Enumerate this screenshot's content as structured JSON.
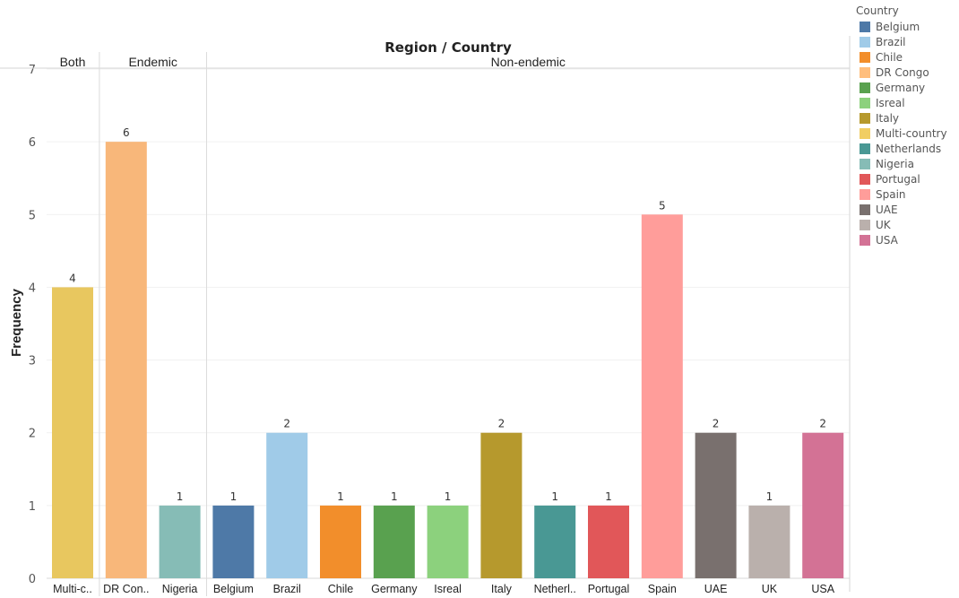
{
  "chart_data": {
    "type": "bar",
    "title": "Region / Country",
    "ylabel": "Frequency",
    "xlabel": "",
    "ylim": [
      0,
      7
    ],
    "yticks": [
      0,
      1,
      2,
      3,
      4,
      5,
      6,
      7
    ],
    "grid": true,
    "legend_position": "right",
    "regions": [
      {
        "name": "Both",
        "categories": [
          "Multi-country"
        ]
      },
      {
        "name": "Endemic",
        "categories": [
          "DR Congo",
          "Nigeria"
        ]
      },
      {
        "name": "Non-endemic",
        "categories": [
          "Belgium",
          "Brazil",
          "Chile",
          "Germany",
          "Isreal",
          "Italy",
          "Netherlands",
          "Portugal",
          "Spain",
          "UAE",
          "UK",
          "USA"
        ]
      }
    ],
    "categories": [
      "Multi-country",
      "DR Congo",
      "Nigeria",
      "Belgium",
      "Brazil",
      "Chile",
      "Germany",
      "Isreal",
      "Italy",
      "Netherlands",
      "Portugal",
      "Spain",
      "UAE",
      "UK",
      "USA"
    ],
    "category_labels": [
      "Multi-c..",
      "DR Con..",
      "Nigeria",
      "Belgium",
      "Brazil",
      "Chile",
      "Germany",
      "Isreal",
      "Italy",
      "Netherl..",
      "Portugal",
      "Spain",
      "UAE",
      "UK",
      "USA"
    ],
    "values": [
      4,
      6,
      1,
      1,
      2,
      1,
      1,
      1,
      2,
      1,
      1,
      5,
      2,
      1,
      2
    ],
    "colors": [
      "#E8C75F",
      "#F8B77A",
      "#86BCB6",
      "#4E79A7",
      "#A0CBE8",
      "#F28E2B",
      "#59A14F",
      "#8CD17D",
      "#B6992D",
      "#499894",
      "#E15759",
      "#FF9D9A",
      "#79706E",
      "#BAB0AC",
      "#D37295"
    ]
  },
  "legend": {
    "title": "Country",
    "items": [
      {
        "label": "Belgium",
        "color": "#4E79A7"
      },
      {
        "label": "Brazil",
        "color": "#A0CBE8"
      },
      {
        "label": "Chile",
        "color": "#F28E2B"
      },
      {
        "label": "DR Congo",
        "color": "#FFBE7D"
      },
      {
        "label": "Germany",
        "color": "#59A14F"
      },
      {
        "label": "Isreal",
        "color": "#8CD17D"
      },
      {
        "label": "Italy",
        "color": "#B6992D"
      },
      {
        "label": "Multi-country",
        "color": "#F1CE63"
      },
      {
        "label": "Netherlands",
        "color": "#499894"
      },
      {
        "label": "Nigeria",
        "color": "#86BCB6"
      },
      {
        "label": "Portugal",
        "color": "#E15759"
      },
      {
        "label": "Spain",
        "color": "#FF9D9A"
      },
      {
        "label": "UAE",
        "color": "#79706E"
      },
      {
        "label": "UK",
        "color": "#BAB0AC"
      },
      {
        "label": "USA",
        "color": "#D37295"
      }
    ]
  }
}
